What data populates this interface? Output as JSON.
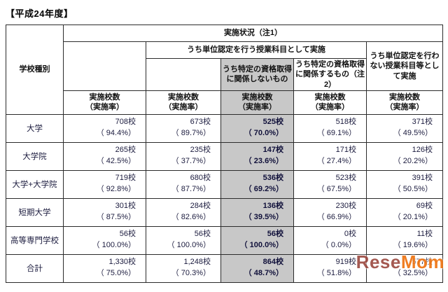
{
  "page": {
    "title": "【平成24年度】"
  },
  "colors": {
    "shaded_column_bg": "#c8c8c8",
    "watermark_rese": "#9e4d44",
    "watermark_mom": "#ee7412",
    "border": "#2b2b2b"
  },
  "table": {
    "headers": {
      "school_type": "学校種別",
      "status": "実施状況（注1）",
      "credit": "うち単位認定を行う授業科目として実施",
      "credit_no_qual": "うち特定の資格取得に関係しないもの",
      "credit_qual": "うち特定の資格取得に関係するもの（注2）",
      "no_credit": "うち単位認定を行わない授業科目等として実施",
      "count_label": "実施校数",
      "rate_label": "（実施率）"
    },
    "rows": [
      {
        "label": "大学",
        "cells": [
          {
            "count": "708校",
            "rate": "（ 94.4%）"
          },
          {
            "count": "673校",
            "rate": "（ 89.7%）"
          },
          {
            "count": "525校",
            "rate": "（ 70.0%）"
          },
          {
            "count": "518校",
            "rate": "（ 69.1%）"
          },
          {
            "count": "371校",
            "rate": "（ 49.5%）"
          }
        ]
      },
      {
        "label": "大学院",
        "cells": [
          {
            "count": "265校",
            "rate": "（ 42.5%）"
          },
          {
            "count": "235校",
            "rate": "（ 37.7%）"
          },
          {
            "count": "147校",
            "rate": "（ 23.6%）"
          },
          {
            "count": "171校",
            "rate": "（ 27.4%）"
          },
          {
            "count": "126校",
            "rate": "（ 20.2%）"
          }
        ]
      },
      {
        "label": "大学+大学院",
        "cells": [
          {
            "count": "719校",
            "rate": "（ 92.8%）"
          },
          {
            "count": "680校",
            "rate": "（ 87.7%）"
          },
          {
            "count": "536校",
            "rate": "（ 69.2%）"
          },
          {
            "count": "523校",
            "rate": "（ 67.5%）"
          },
          {
            "count": "391校",
            "rate": "（ 50.5%）"
          }
        ]
      },
      {
        "label": "短期大学",
        "cells": [
          {
            "count": "301校",
            "rate": "（ 87.5%）"
          },
          {
            "count": "284校",
            "rate": "（ 82.6%）"
          },
          {
            "count": "136校",
            "rate": "（ 39.5%）"
          },
          {
            "count": "230校",
            "rate": "（ 66.9%）"
          },
          {
            "count": "69校",
            "rate": "（ 20.1%）"
          }
        ]
      },
      {
        "label": "高等専門学校",
        "cells": [
          {
            "count": "56校",
            "rate": "（ 100.0%）"
          },
          {
            "count": "56校",
            "rate": "（ 100.0%）"
          },
          {
            "count": "56校",
            "rate": "（ 100.0%）"
          },
          {
            "count": "0校",
            "rate": "（ 0.0%）"
          },
          {
            "count": "11校",
            "rate": "（ 19.6%）"
          }
        ]
      },
      {
        "label": "合計",
        "cells": [
          {
            "count": "1,330校",
            "rate": "（ 75.0%）"
          },
          {
            "count": "1,248校",
            "rate": "（ 70.3%）"
          },
          {
            "count": "864校",
            "rate": "（ 48.7%）"
          },
          {
            "count": "919校",
            "rate": "（ 51.8%）"
          },
          {
            "count": "577校",
            "rate": "（ 32.5%）"
          }
        ]
      }
    ]
  },
  "chart_data": {
    "type": "table",
    "title": "【平成24年度】実施状況（注1）",
    "row_header": "学校種別",
    "columns": [
      "実施校数（実施率）",
      "うち単位認定を行う授業科目として実施 実施校数（実施率）",
      "うち特定の資格取得に関係しないもの 実施校数（実施率）",
      "うち特定の資格取得に関係するもの（注2） 実施校数（実施率）",
      "うち単位認定を行わない授業科目等として実施 実施校数（実施率）"
    ],
    "rows": [
      {
        "label": "大学",
        "counts": [
          708,
          673,
          525,
          518,
          371
        ],
        "rates_pct": [
          94.4,
          89.7,
          70.0,
          69.1,
          49.5
        ]
      },
      {
        "label": "大学院",
        "counts": [
          265,
          235,
          147,
          171,
          126
        ],
        "rates_pct": [
          42.5,
          37.7,
          23.6,
          27.4,
          20.2
        ]
      },
      {
        "label": "大学+大学院",
        "counts": [
          719,
          680,
          536,
          523,
          391
        ],
        "rates_pct": [
          92.8,
          87.7,
          69.2,
          67.5,
          50.5
        ]
      },
      {
        "label": "短期大学",
        "counts": [
          301,
          284,
          136,
          230,
          69
        ],
        "rates_pct": [
          87.5,
          82.6,
          39.5,
          66.9,
          20.1
        ]
      },
      {
        "label": "高等専門学校",
        "counts": [
          56,
          56,
          56,
          0,
          11
        ],
        "rates_pct": [
          100.0,
          100.0,
          100.0,
          0.0,
          19.6
        ]
      },
      {
        "label": "合計",
        "counts": [
          1330,
          1248,
          864,
          919,
          577
        ],
        "rates_pct": [
          75.0,
          70.3,
          48.7,
          51.8,
          32.5
        ]
      }
    ]
  },
  "watermark": {
    "part1": "Rese",
    "part2": "Mom"
  }
}
